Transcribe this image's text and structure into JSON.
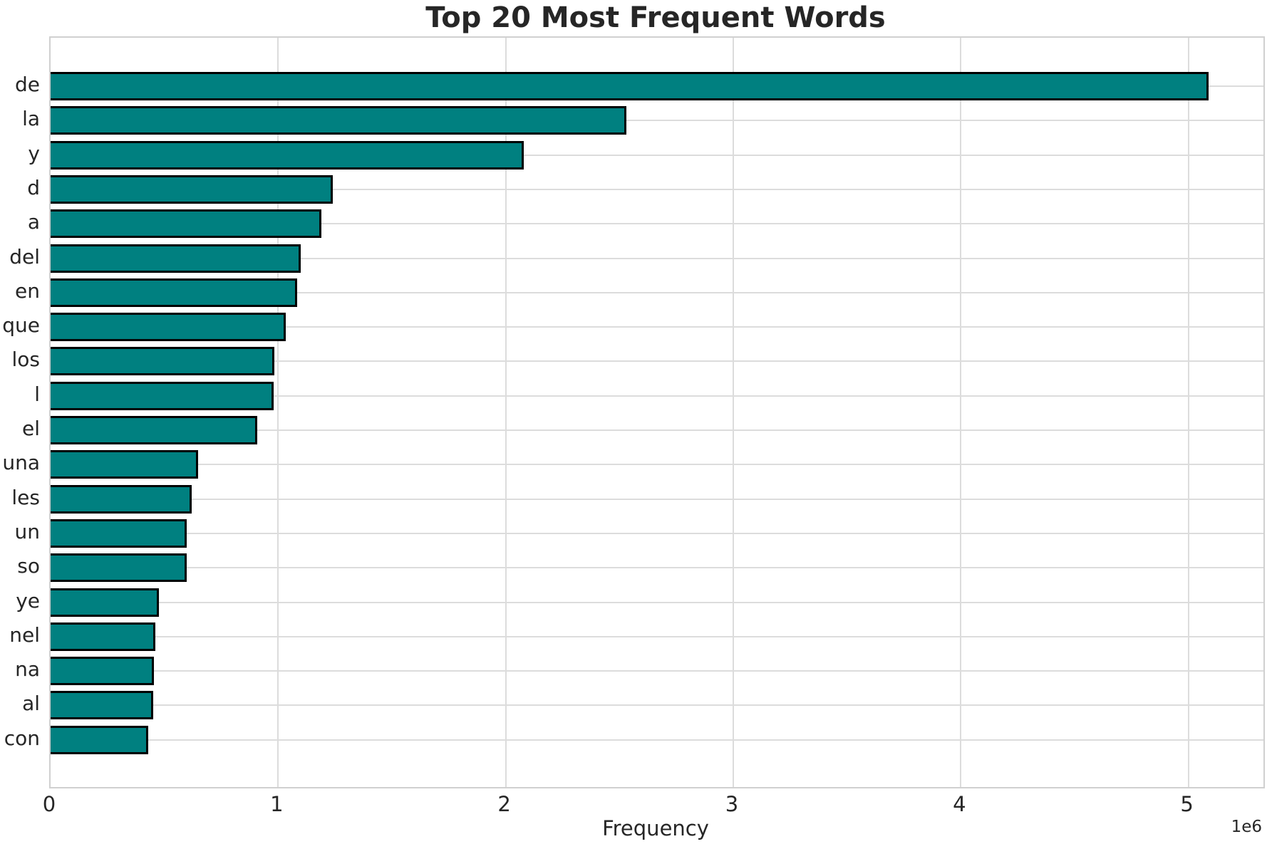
{
  "chart_data": {
    "type": "bar",
    "orientation": "horizontal",
    "title": "Top 20 Most Frequent Words",
    "xlabel": "Frequency",
    "ylabel": "",
    "offset_label": "1e6",
    "categories": [
      "de",
      "la",
      "y",
      "d",
      "a",
      "del",
      "en",
      "que",
      "los",
      "l",
      "el",
      "una",
      "les",
      "un",
      "so",
      "ye",
      "nel",
      "na",
      "al",
      "con"
    ],
    "values": [
      5080000,
      2520000,
      2070000,
      1230000,
      1180000,
      1090000,
      1075000,
      1025000,
      973000,
      970000,
      900000,
      638000,
      611000,
      590000,
      588000,
      466000,
      450000,
      446000,
      440000,
      419000
    ],
    "xlim": [
      0,
      5330000
    ],
    "x_ticks": [
      0,
      1000000,
      2000000,
      3000000,
      4000000,
      5000000
    ],
    "x_tick_labels": [
      "0",
      "1",
      "2",
      "3",
      "4",
      "5"
    ],
    "grid": true,
    "legend": false,
    "bar_color": "#008080",
    "bar_edge_color": "#000000",
    "grid_color": "#dcdcdc",
    "text_color": "#262626",
    "background_color": "#ffffff"
  }
}
